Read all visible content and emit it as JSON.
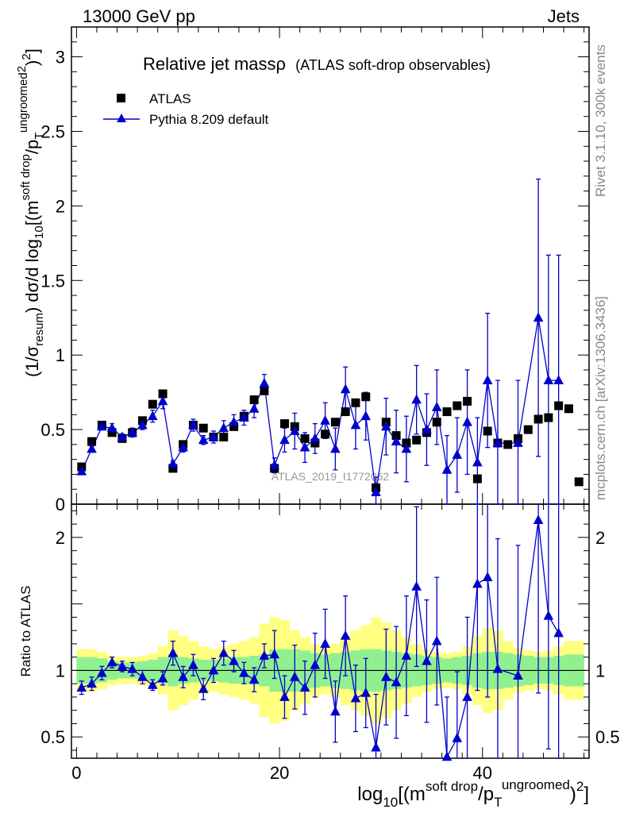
{
  "header": {
    "left": "13000 GeV pp",
    "right": "Jets"
  },
  "title": {
    "main": "Relative jet massρ",
    "sub": "(ATLAS soft-drop observables)"
  },
  "side": {
    "rivet": "Rivet 3.1.10,  300k events",
    "mcplots": "mcplots.cern.ch [arXiv:1306.3436]"
  },
  "watermark": "ATLAS_2019_I1772062",
  "chart_data": {
    "type": "scatter",
    "colors": {
      "data": "#000000",
      "mc": "#0000cc",
      "band_inner": "#90f090",
      "band_outer": "#ffff80"
    },
    "main_panel": {
      "ylabel": "(1/σresum) dσ/d log10[(m soft drop/pT ungroomed)2]",
      "ylim": [
        0,
        3.2
      ],
      "yticks": [
        "0",
        "0.5",
        "1",
        "1.5",
        "2",
        "2.5",
        "3"
      ],
      "legend": [
        "ATLAS",
        "Pythia 8.209 default"
      ],
      "legend_position": "top-left",
      "series": [
        {
          "name": "ATLAS",
          "marker": "square",
          "x": [
            0.5,
            1.5,
            2.5,
            3.5,
            4.5,
            5.5,
            6.5,
            7.5,
            8.5,
            9.5,
            10.5,
            11.5,
            12.5,
            13.5,
            14.5,
            15.5,
            16.5,
            17.5,
            18.5,
            19.5,
            20.5,
            21.5,
            22.5,
            23.5,
            24.5,
            25.5,
            26.5,
            27.5,
            28.5,
            29.5,
            30.5,
            31.5,
            32.5,
            33.5,
            34.5,
            35.5,
            36.5,
            37.5,
            38.5,
            39.5,
            40.5,
            41.5,
            42.5,
            43.5,
            44.5,
            45.5,
            46.5,
            47.5,
            48.5,
            49.5
          ],
          "y": [
            0.25,
            0.42,
            0.53,
            0.48,
            0.44,
            0.48,
            0.56,
            0.67,
            0.74,
            0.24,
            0.4,
            0.53,
            0.51,
            0.45,
            0.45,
            0.52,
            0.59,
            0.7,
            0.76,
            0.24,
            0.54,
            0.52,
            0.44,
            0.41,
            0.47,
            0.55,
            0.62,
            0.68,
            0.72,
            0.11,
            0.55,
            0.46,
            0.41,
            0.43,
            0.48,
            0.55,
            0.62,
            0.66,
            0.69,
            0.17,
            0.49,
            0.41,
            0.4,
            0.44,
            0.5,
            0.57,
            0.58,
            0.66,
            0.64,
            0.15
          ]
        },
        {
          "name": "Pythia 8.209 default",
          "marker": "triangle",
          "x": [
            0.5,
            1.5,
            2.5,
            3.5,
            4.5,
            5.5,
            6.5,
            7.5,
            8.5,
            9.5,
            10.5,
            11.5,
            12.5,
            13.5,
            14.5,
            15.5,
            16.5,
            17.5,
            18.5,
            19.5,
            20.5,
            21.5,
            22.5,
            23.5,
            24.5,
            25.5,
            26.5,
            27.5,
            28.5,
            29.5,
            30.5,
            31.5,
            32.5,
            33.5,
            34.5,
            35.5,
            36.5,
            37.5,
            38.5,
            39.5,
            40.5,
            41.5,
            43.5,
            45.5,
            46.5,
            47.5
          ],
          "y": [
            0.22,
            0.37,
            0.52,
            0.51,
            0.45,
            0.48,
            0.53,
            0.59,
            0.69,
            0.27,
            0.38,
            0.53,
            0.43,
            0.45,
            0.51,
            0.55,
            0.58,
            0.64,
            0.81,
            0.26,
            0.43,
            0.49,
            0.38,
            0.44,
            0.56,
            0.37,
            0.77,
            0.53,
            0.59,
            0.08,
            0.52,
            0.42,
            0.37,
            0.7,
            0.5,
            0.65,
            0.23,
            0.33,
            0.55,
            0.28,
            0.83,
            0.41,
            0.41,
            1.25,
            0.83,
            0.83
          ],
          "yerr": [
            0.02,
            0.02,
            0.02,
            0.03,
            0.02,
            0.03,
            0.03,
            0.04,
            0.05,
            0.02,
            0.03,
            0.04,
            0.03,
            0.04,
            0.05,
            0.05,
            0.05,
            0.06,
            0.06,
            0.05,
            0.08,
            0.12,
            0.1,
            0.1,
            0.12,
            0.14,
            0.15,
            0.16,
            0.16,
            0.1,
            0.19,
            0.21,
            0.22,
            0.23,
            0.24,
            0.25,
            0.23,
            0.25,
            0.35,
            0.3,
            0.45,
            0.42,
            0.42,
            0.93,
            0.84,
            0.84
          ]
        }
      ]
    },
    "ratio_panel": {
      "ylabel": "Ratio to ATLAS",
      "ylim": [
        0.34,
        2.25
      ],
      "yticks": [
        "0.5",
        "1",
        "2"
      ],
      "reference": 1,
      "xlabel": "log10[(m soft drop/pT ungroomed)2]",
      "xlim": [
        -0.5,
        50.5
      ],
      "xticks": [
        "0",
        "20",
        "40"
      ],
      "ratio": {
        "x": [
          0.5,
          1.5,
          2.5,
          3.5,
          4.5,
          5.5,
          6.5,
          7.5,
          8.5,
          9.5,
          10.5,
          11.5,
          12.5,
          13.5,
          14.5,
          15.5,
          16.5,
          17.5,
          18.5,
          19.5,
          20.5,
          21.5,
          22.5,
          23.5,
          24.5,
          25.5,
          26.5,
          27.5,
          28.5,
          29.5,
          30.5,
          31.5,
          32.5,
          33.5,
          34.5,
          35.5,
          36.5,
          37.5,
          38.5,
          39.5,
          40.5,
          41.5,
          43.5,
          45.5,
          46.5,
          47.5
        ],
        "y": [
          0.87,
          0.9,
          0.98,
          1.06,
          1.03,
          1.01,
          0.95,
          0.89,
          0.94,
          1.13,
          0.95,
          1.04,
          0.86,
          1.0,
          1.13,
          1.07,
          0.98,
          0.93,
          1.11,
          1.12,
          0.8,
          0.95,
          0.87,
          1.04,
          1.2,
          0.69,
          1.26,
          0.79,
          0.83,
          0.42,
          0.95,
          0.91,
          1.11,
          1.63,
          1.07,
          1.22,
          0.35,
          0.49,
          0.8,
          1.65,
          1.7,
          1.01,
          0.96,
          2.13,
          1.41,
          1.28
        ],
        "yerr": [
          0.05,
          0.05,
          0.05,
          0.04,
          0.04,
          0.05,
          0.05,
          0.04,
          0.05,
          0.09,
          0.08,
          0.08,
          0.08,
          0.09,
          0.09,
          0.08,
          0.08,
          0.09,
          0.09,
          0.18,
          0.16,
          0.24,
          0.2,
          0.24,
          0.26,
          0.23,
          0.3,
          0.25,
          0.26,
          0.4,
          0.36,
          0.42,
          0.45,
          0.6,
          0.46,
          0.48,
          0.45,
          0.5,
          0.6,
          0.8,
          0.9,
          0.98,
          0.98,
          1.3,
          1.0,
          1.0
        ]
      },
      "band_inner": [
        0.1,
        0.1,
        0.09,
        0.07,
        0.06,
        0.06,
        0.07,
        0.08,
        0.1,
        0.12,
        0.1,
        0.09,
        0.08,
        0.08,
        0.09,
        0.1,
        0.1,
        0.11,
        0.12,
        0.16,
        0.16,
        0.16,
        0.15,
        0.13,
        0.12,
        0.13,
        0.14,
        0.15,
        0.16,
        0.16,
        0.15,
        0.14,
        0.13,
        0.12,
        0.11,
        0.1,
        0.09,
        0.1,
        0.11,
        0.13,
        0.14,
        0.14,
        0.13,
        0.12,
        0.11,
        0.1,
        0.1,
        0.11,
        0.12,
        0.12
      ],
      "band_outer": [
        0.16,
        0.16,
        0.14,
        0.11,
        0.1,
        0.1,
        0.11,
        0.13,
        0.18,
        0.3,
        0.26,
        0.22,
        0.18,
        0.16,
        0.18,
        0.2,
        0.22,
        0.25,
        0.35,
        0.4,
        0.38,
        0.3,
        0.25,
        0.2,
        0.18,
        0.2,
        0.26,
        0.3,
        0.34,
        0.4,
        0.36,
        0.3,
        0.25,
        0.2,
        0.16,
        0.14,
        0.13,
        0.14,
        0.18,
        0.26,
        0.32,
        0.3,
        0.22,
        0.17,
        0.15,
        0.14,
        0.15,
        0.18,
        0.22,
        0.22
      ]
    }
  }
}
